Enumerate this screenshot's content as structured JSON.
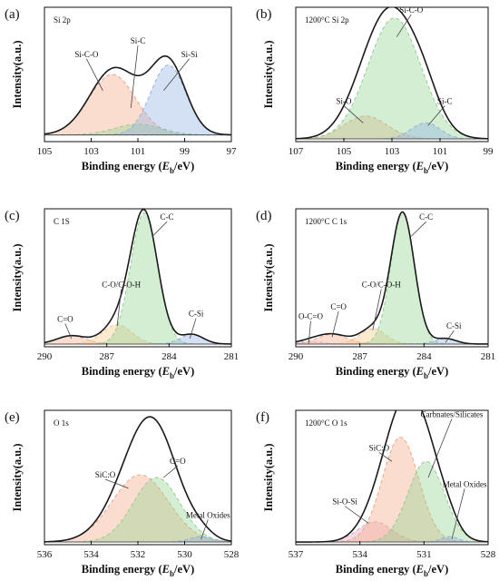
{
  "figure": {
    "ylabel": "Intensity(a.u.)",
    "xlabel_prefix": "Binding energy (",
    "xlabel_var": "E",
    "xlabel_sub": "b",
    "xlabel_suffix": "/eV)"
  },
  "chart_data": [
    {
      "type": "area",
      "panel": "(a)",
      "title": "Si 2p",
      "xlabel": "Binding energy (Eb/eV)",
      "ylabel": "Intensity(a.u.)",
      "xlim": [
        105,
        97
      ],
      "ticks": [
        105,
        103,
        101,
        99,
        97
      ],
      "background": 0.05,
      "series": [
        {
          "name": "Si-C-O",
          "center": 102.1,
          "height": 0.45,
          "width": 1.0,
          "color": "#f4a582"
        },
        {
          "name": "Si-C",
          "center": 101.0,
          "height": 0.08,
          "width": 1.0,
          "color": "#8fd18f"
        },
        {
          "name": "Si-Si",
          "center": 99.7,
          "height": 0.52,
          "width": 0.75,
          "color": "#8fb1e6"
        }
      ],
      "annotations": [
        {
          "text": "Si-C-O",
          "x": 103.2,
          "y": 0.63,
          "ax": 102.5,
          "ay": 0.38
        },
        {
          "text": "Si-C",
          "x": 101.0,
          "y": 0.73,
          "ax": 101.3,
          "ay": 0.25
        },
        {
          "text": "Si-Si",
          "x": 98.8,
          "y": 0.63,
          "ax": 99.9,
          "ay": 0.38
        }
      ]
    },
    {
      "type": "area",
      "panel": "(b)",
      "title": "1200°C Si 2p",
      "xlabel": "Binding energy (Eb/eV)",
      "ylabel": "Intensity(a.u.)",
      "xlim": [
        107,
        99
      ],
      "ticks": [
        107,
        105,
        103,
        101,
        99
      ],
      "background": 0.02,
      "series": [
        {
          "name": "Si-O",
          "center": 104.1,
          "height": 0.17,
          "width": 0.9,
          "color": "#f4a582"
        },
        {
          "name": "Si-C-O",
          "center": 102.9,
          "height": 0.9,
          "width": 1.1,
          "color": "#8fd18f"
        },
        {
          "name": "Si-C",
          "center": 101.6,
          "height": 0.12,
          "width": 0.6,
          "color": "#8fb1e6"
        }
      ],
      "annotations": [
        {
          "text": "Si-C-O",
          "x": 102.2,
          "y": 0.96,
          "ax": 102.8,
          "ay": 0.78
        },
        {
          "text": "Si-O",
          "x": 105.0,
          "y": 0.28,
          "ax": 104.2,
          "ay": 0.14
        },
        {
          "text": "Si-C",
          "x": 100.8,
          "y": 0.28,
          "ax": 101.5,
          "ay": 0.12
        }
      ]
    },
    {
      "type": "area",
      "panel": "(c)",
      "title": "C 1S",
      "xlabel": "Binding energy (Eb/eV)",
      "ylabel": "Intensity(a.u.)",
      "xlim": [
        290,
        281
      ],
      "ticks": [
        290,
        287,
        284,
        281
      ],
      "background": 0.02,
      "series": [
        {
          "name": "C=O",
          "center": 288.7,
          "height": 0.06,
          "width": 0.7,
          "color": "#f4a582"
        },
        {
          "name": "C-O/C-O-H",
          "center": 286.5,
          "height": 0.14,
          "width": 0.7,
          "color": "#f6c483"
        },
        {
          "name": "C-C",
          "center": 285.2,
          "height": 0.95,
          "width": 0.65,
          "color": "#8fd18f"
        },
        {
          "name": "C-Si",
          "center": 282.9,
          "height": 0.07,
          "width": 0.55,
          "color": "#8fb1e6"
        }
      ],
      "annotations": [
        {
          "text": "C=O",
          "x": 289.0,
          "y": 0.18,
          "ax": 288.7,
          "ay": 0.06
        },
        {
          "text": "C-O/C-O-H",
          "x": 286.3,
          "y": 0.43,
          "ax": 286.5,
          "ay": 0.15
        },
        {
          "text": "C-C",
          "x": 284.1,
          "y": 0.92,
          "ax": 284.8,
          "ay": 0.8
        },
        {
          "text": "C-Si",
          "x": 282.7,
          "y": 0.22,
          "ax": 283.0,
          "ay": 0.06
        }
      ]
    },
    {
      "type": "area",
      "panel": "(d)",
      "title": "1200°C C 1s",
      "xlabel": "Binding energy (Eb/eV)",
      "ylabel": "Intensity(a.u.)",
      "xlim": [
        290,
        281
      ],
      "ticks": [
        290,
        287,
        284,
        281
      ],
      "background": 0.02,
      "series": [
        {
          "name": "O-C=O",
          "center": 289.4,
          "height": 0.02,
          "width": 0.6,
          "color": "#d9b3e6"
        },
        {
          "name": "C=O",
          "center": 288.3,
          "height": 0.07,
          "width": 0.7,
          "color": "#f4a582"
        },
        {
          "name": "C-O/C-O-H",
          "center": 286.4,
          "height": 0.11,
          "width": 0.6,
          "color": "#f6c483"
        },
        {
          "name": "C-C",
          "center": 285.0,
          "height": 0.95,
          "width": 0.55,
          "color": "#8fd18f"
        },
        {
          "name": "C-Si",
          "center": 283.0,
          "height": 0.04,
          "width": 0.5,
          "color": "#8fb1e6"
        }
      ],
      "annotations": [
        {
          "text": "O-C=O",
          "x": 289.3,
          "y": 0.2,
          "ax": 289.4,
          "ay": 0.02
        },
        {
          "text": "C=O",
          "x": 288.0,
          "y": 0.27,
          "ax": 288.3,
          "ay": 0.07
        },
        {
          "text": "C-O/C-O-H",
          "x": 286.0,
          "y": 0.43,
          "ax": 286.4,
          "ay": 0.12
        },
        {
          "text": "C-C",
          "x": 283.9,
          "y": 0.92,
          "ax": 284.6,
          "ay": 0.8
        },
        {
          "text": "C-Si",
          "x": 282.6,
          "y": 0.13,
          "ax": 283.0,
          "ay": 0.03
        }
      ]
    },
    {
      "type": "area",
      "panel": "(e)",
      "title": "O 1s",
      "xlabel": "Binding energy (Eb/eV)",
      "ylabel": "Intensity(a.u.)",
      "xlim": [
        536,
        528
      ],
      "ticks": [
        536,
        534,
        532,
        530,
        528
      ],
      "background": 0.02,
      "series": [
        {
          "name": "SiC:O",
          "center": 531.9,
          "height": 0.5,
          "width": 1.2,
          "color": "#f4a582"
        },
        {
          "name": "C=O",
          "center": 531.2,
          "height": 0.48,
          "width": 1.0,
          "color": "#8fd18f"
        },
        {
          "name": "Metal Oxides",
          "center": 529.3,
          "height": 0.04,
          "width": 0.5,
          "color": "#8fb1e6"
        }
      ],
      "annotations": [
        {
          "text": "SiC:O",
          "x": 533.4,
          "y": 0.5,
          "ax": 532.4,
          "ay": 0.42
        },
        {
          "text": "C=O",
          "x": 530.3,
          "y": 0.6,
          "ax": 530.9,
          "ay": 0.5
        },
        {
          "text": "Metal Oxides",
          "x": 529.0,
          "y": 0.2,
          "ax": 529.3,
          "ay": 0.04
        }
      ]
    },
    {
      "type": "area",
      "panel": "(f)",
      "title": "1200°C O 1s",
      "xlabel": "Binding energy (Eb/eV)",
      "ylabel": "Intensity(a.u.)",
      "xlim": [
        537,
        528
      ],
      "ticks": [
        537,
        534,
        531,
        528
      ],
      "background": 0.02,
      "series": [
        {
          "name": "Si-O-Si",
          "center": 533.3,
          "height": 0.15,
          "width": 0.8,
          "color": "#e6a3b8"
        },
        {
          "name": "SiC:O",
          "center": 532.1,
          "height": 0.78,
          "width": 0.85,
          "color": "#f4a582"
        },
        {
          "name": "Carbnates/Silicates",
          "center": 530.9,
          "height": 0.6,
          "width": 0.85,
          "color": "#8fd18f"
        },
        {
          "name": "Metal Oxides",
          "center": 529.8,
          "height": 0.04,
          "width": 0.4,
          "color": "#8fb1e6"
        }
      ],
      "annotations": [
        {
          "text": "SiC:O",
          "x": 533.1,
          "y": 0.7,
          "ax": 532.5,
          "ay": 0.62
        },
        {
          "text": "Carbnates/Silicates",
          "x": 529.7,
          "y": 0.95,
          "ax": 530.8,
          "ay": 0.5
        },
        {
          "text": "Si-O-Si",
          "x": 534.7,
          "y": 0.3,
          "ax": 533.6,
          "ay": 0.16
        },
        {
          "text": "Metal Oxides",
          "x": 529.1,
          "y": 0.43,
          "ax": 529.7,
          "ay": 0.04
        }
      ]
    }
  ]
}
